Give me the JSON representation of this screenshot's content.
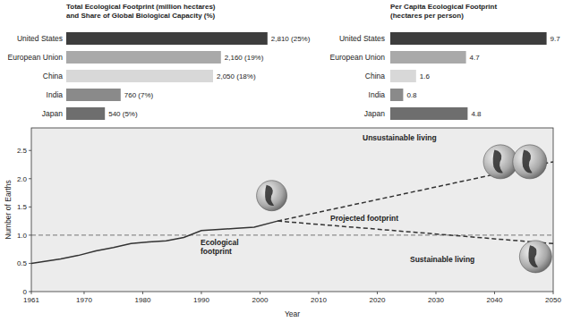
{
  "chart_data": [
    {
      "type": "bar",
      "orientation": "horizontal",
      "title": "Total Ecological Footprint (million hectares)",
      "subtitle": "and Share of Global Biological Capacity (%)",
      "categories": [
        "United States",
        "European Union",
        "China",
        "India",
        "Japan"
      ],
      "values": [
        2810,
        2160,
        2050,
        760,
        540
      ],
      "value_labels": [
        "2,810 (25%)",
        "2,160 (19%)",
        "2,050 (18%)",
        "760 (7%)",
        "540 (5%)"
      ],
      "colors": [
        "#3d3d3d",
        "#a9a9a9",
        "#d8d8d8",
        "#8a8a8a",
        "#6e6e6e"
      ],
      "xlim": [
        0,
        3000
      ],
      "data_labels": true,
      "tick_labels": "y"
    },
    {
      "type": "bar",
      "orientation": "horizontal",
      "title": "Per Capita Ecological Footprint",
      "subtitle": "(hectares per person)",
      "categories": [
        "United States",
        "European Union",
        "China",
        "India",
        "Japan"
      ],
      "values": [
        9.7,
        4.7,
        1.6,
        0.8,
        4.8
      ],
      "colors": [
        "#3d3d3d",
        "#a9a9a9",
        "#d8d8d8",
        "#8a8a8a",
        "#6e6e6e"
      ],
      "xlim": [
        0,
        10
      ],
      "data_labels": true,
      "tick_labels": "y"
    },
    {
      "type": "line",
      "xlabel": "Year",
      "ylabel": "Number of Earths",
      "xlim": [
        1961,
        2050
      ],
      "xticks": [
        1961,
        1970,
        1980,
        1990,
        2000,
        2010,
        2020,
        2030,
        2040,
        2050
      ],
      "ylim": [
        0,
        2.9
      ],
      "yticks": [
        0,
        0.5,
        {
          "value": 1,
          "label": "1.0"
        },
        1.5,
        {
          "value": 2,
          "label": "2.0"
        },
        2.5
      ],
      "annotations": [
        "Projected footprint"
      ],
      "series": [
        {
          "name": "Ecological footprint",
          "color": "#333333",
          "line_style": "solid",
          "x": [
            1961,
            1963,
            1966,
            1969,
            1972,
            1975,
            1978,
            1981,
            1984,
            1987,
            1990,
            1993,
            1996,
            1999,
            2003
          ],
          "values": [
            0.5,
            0.53,
            0.58,
            0.64,
            0.72,
            0.78,
            0.85,
            0.88,
            0.9,
            0.96,
            1.08,
            1.1,
            1.12,
            1.14,
            1.25
          ]
        },
        {
          "name": "Unsustainable living",
          "color": "#333333",
          "line_style": "dashed",
          "x": [
            2003,
            2050
          ],
          "values": [
            1.25,
            2.3
          ]
        },
        {
          "name": "Sustainable living",
          "color": "#333333",
          "line_style": "dashed",
          "x": [
            2003,
            2050
          ],
          "values": [
            1.25,
            0.85
          ]
        },
        {
          "color": "#666666",
          "line_style": "dashed",
          "x": [
            1961,
            2050
          ],
          "values": [
            1,
            1
          ]
        }
      ]
    }
  ]
}
